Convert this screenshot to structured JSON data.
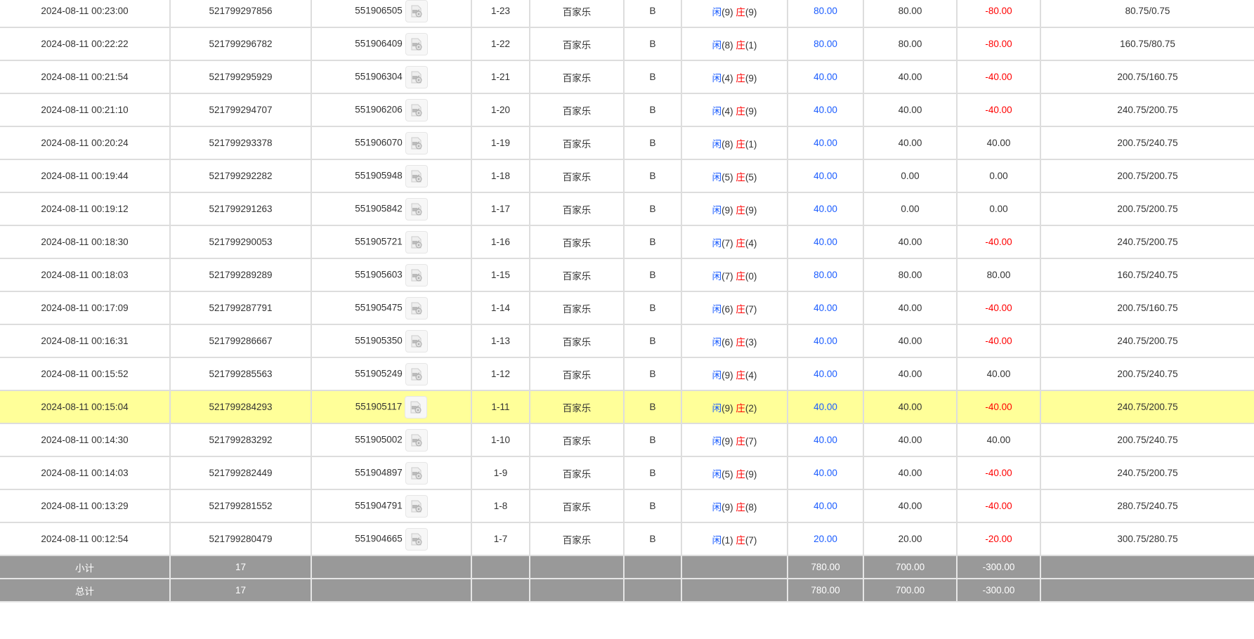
{
  "rows": [
    {
      "time": "2024-08-11 00:23:00",
      "order": "521799297856",
      "round": "551906505",
      "shoe": "1-23",
      "game": "百家乐",
      "table": "B",
      "player": "闲",
      "player_pts": "(9)",
      "banker": "庄",
      "banker_pts": "(9)",
      "bet": "80.00",
      "valid": "80.00",
      "win": "-80.00",
      "balance": "80.75/0.75"
    },
    {
      "time": "2024-08-11 00:22:22",
      "order": "521799296782",
      "round": "551906409",
      "shoe": "1-22",
      "game": "百家乐",
      "table": "B",
      "player": "闲",
      "player_pts": "(8)",
      "banker": "庄",
      "banker_pts": "(1)",
      "bet": "80.00",
      "valid": "80.00",
      "win": "-80.00",
      "balance": "160.75/80.75"
    },
    {
      "time": "2024-08-11 00:21:54",
      "order": "521799295929",
      "round": "551906304",
      "shoe": "1-21",
      "game": "百家乐",
      "table": "B",
      "player": "闲",
      "player_pts": "(4)",
      "banker": "庄",
      "banker_pts": "(9)",
      "bet": "40.00",
      "valid": "40.00",
      "win": "-40.00",
      "balance": "200.75/160.75"
    },
    {
      "time": "2024-08-11 00:21:10",
      "order": "521799294707",
      "round": "551906206",
      "shoe": "1-20",
      "game": "百家乐",
      "table": "B",
      "player": "闲",
      "player_pts": "(4)",
      "banker": "庄",
      "banker_pts": "(9)",
      "bet": "40.00",
      "valid": "40.00",
      "win": "-40.00",
      "balance": "240.75/200.75"
    },
    {
      "time": "2024-08-11 00:20:24",
      "order": "521799293378",
      "round": "551906070",
      "shoe": "1-19",
      "game": "百家乐",
      "table": "B",
      "player": "闲",
      "player_pts": "(8)",
      "banker": "庄",
      "banker_pts": "(1)",
      "bet": "40.00",
      "valid": "40.00",
      "win": "40.00",
      "balance": "200.75/240.75"
    },
    {
      "time": "2024-08-11 00:19:44",
      "order": "521799292282",
      "round": "551905948",
      "shoe": "1-18",
      "game": "百家乐",
      "table": "B",
      "player": "闲",
      "player_pts": "(5)",
      "banker": "庄",
      "banker_pts": "(5)",
      "bet": "40.00",
      "valid": "0.00",
      "win": "0.00",
      "balance": "200.75/200.75"
    },
    {
      "time": "2024-08-11 00:19:12",
      "order": "521799291263",
      "round": "551905842",
      "shoe": "1-17",
      "game": "百家乐",
      "table": "B",
      "player": "闲",
      "player_pts": "(9)",
      "banker": "庄",
      "banker_pts": "(9)",
      "bet": "40.00",
      "valid": "0.00",
      "win": "0.00",
      "balance": "200.75/200.75"
    },
    {
      "time": "2024-08-11 00:18:30",
      "order": "521799290053",
      "round": "551905721",
      "shoe": "1-16",
      "game": "百家乐",
      "table": "B",
      "player": "闲",
      "player_pts": "(7)",
      "banker": "庄",
      "banker_pts": "(4)",
      "bet": "40.00",
      "valid": "40.00",
      "win": "-40.00",
      "balance": "240.75/200.75"
    },
    {
      "time": "2024-08-11 00:18:03",
      "order": "521799289289",
      "round": "551905603",
      "shoe": "1-15",
      "game": "百家乐",
      "table": "B",
      "player": "闲",
      "player_pts": "(7)",
      "banker": "庄",
      "banker_pts": "(0)",
      "bet": "80.00",
      "valid": "80.00",
      "win": "80.00",
      "balance": "160.75/240.75"
    },
    {
      "time": "2024-08-11 00:17:09",
      "order": "521799287791",
      "round": "551905475",
      "shoe": "1-14",
      "game": "百家乐",
      "table": "B",
      "player": "闲",
      "player_pts": "(6)",
      "banker": "庄",
      "banker_pts": "(7)",
      "bet": "40.00",
      "valid": "40.00",
      "win": "-40.00",
      "balance": "200.75/160.75"
    },
    {
      "time": "2024-08-11 00:16:31",
      "order": "521799286667",
      "round": "551905350",
      "shoe": "1-13",
      "game": "百家乐",
      "table": "B",
      "player": "闲",
      "player_pts": "(6)",
      "banker": "庄",
      "banker_pts": "(3)",
      "bet": "40.00",
      "valid": "40.00",
      "win": "-40.00",
      "balance": "240.75/200.75"
    },
    {
      "time": "2024-08-11 00:15:52",
      "order": "521799285563",
      "round": "551905249",
      "shoe": "1-12",
      "game": "百家乐",
      "table": "B",
      "player": "闲",
      "player_pts": "(9)",
      "banker": "庄",
      "banker_pts": "(4)",
      "bet": "40.00",
      "valid": "40.00",
      "win": "40.00",
      "balance": "200.75/240.75"
    },
    {
      "time": "2024-08-11 00:15:04",
      "order": "521799284293",
      "round": "551905117",
      "shoe": "1-11",
      "game": "百家乐",
      "table": "B",
      "player": "闲",
      "player_pts": "(9)",
      "banker": "庄",
      "banker_pts": "(2)",
      "bet": "40.00",
      "valid": "40.00",
      "win": "-40.00",
      "balance": "240.75/200.75",
      "highlighted": true
    },
    {
      "time": "2024-08-11 00:14:30",
      "order": "521799283292",
      "round": "551905002",
      "shoe": "1-10",
      "game": "百家乐",
      "table": "B",
      "player": "闲",
      "player_pts": "(9)",
      "banker": "庄",
      "banker_pts": "(7)",
      "bet": "40.00",
      "valid": "40.00",
      "win": "40.00",
      "balance": "200.75/240.75"
    },
    {
      "time": "2024-08-11 00:14:03",
      "order": "521799282449",
      "round": "551904897",
      "shoe": "1-9",
      "game": "百家乐",
      "table": "B",
      "player": "闲",
      "player_pts": "(5)",
      "banker": "庄",
      "banker_pts": "(9)",
      "bet": "40.00",
      "valid": "40.00",
      "win": "-40.00",
      "balance": "240.75/200.75"
    },
    {
      "time": "2024-08-11 00:13:29",
      "order": "521799281552",
      "round": "551904791",
      "shoe": "1-8",
      "game": "百家乐",
      "table": "B",
      "player": "闲",
      "player_pts": "(9)",
      "banker": "庄",
      "banker_pts": "(8)",
      "bet": "40.00",
      "valid": "40.00",
      "win": "-40.00",
      "balance": "280.75/240.75"
    },
    {
      "time": "2024-08-11 00:12:54",
      "order": "521799280479",
      "round": "551904665",
      "shoe": "1-7",
      "game": "百家乐",
      "table": "B",
      "player": "闲",
      "player_pts": "(1)",
      "banker": "庄",
      "banker_pts": "(7)",
      "bet": "20.00",
      "valid": "20.00",
      "win": "-20.00",
      "balance": "300.75/280.75"
    }
  ],
  "subtotal": {
    "label": "小计",
    "count": "17",
    "bet": "780.00",
    "valid": "700.00",
    "win": "-300.00"
  },
  "total": {
    "label": "总计",
    "count": "17",
    "bet": "780.00",
    "valid": "700.00",
    "win": "-300.00"
  },
  "colors": {
    "highlight": "#ffff99",
    "bet_blue": "#1a5cff",
    "negative_red": "#ff0000",
    "total_bg": "#999999"
  },
  "icons": {
    "replay": "video-replay-icon"
  }
}
